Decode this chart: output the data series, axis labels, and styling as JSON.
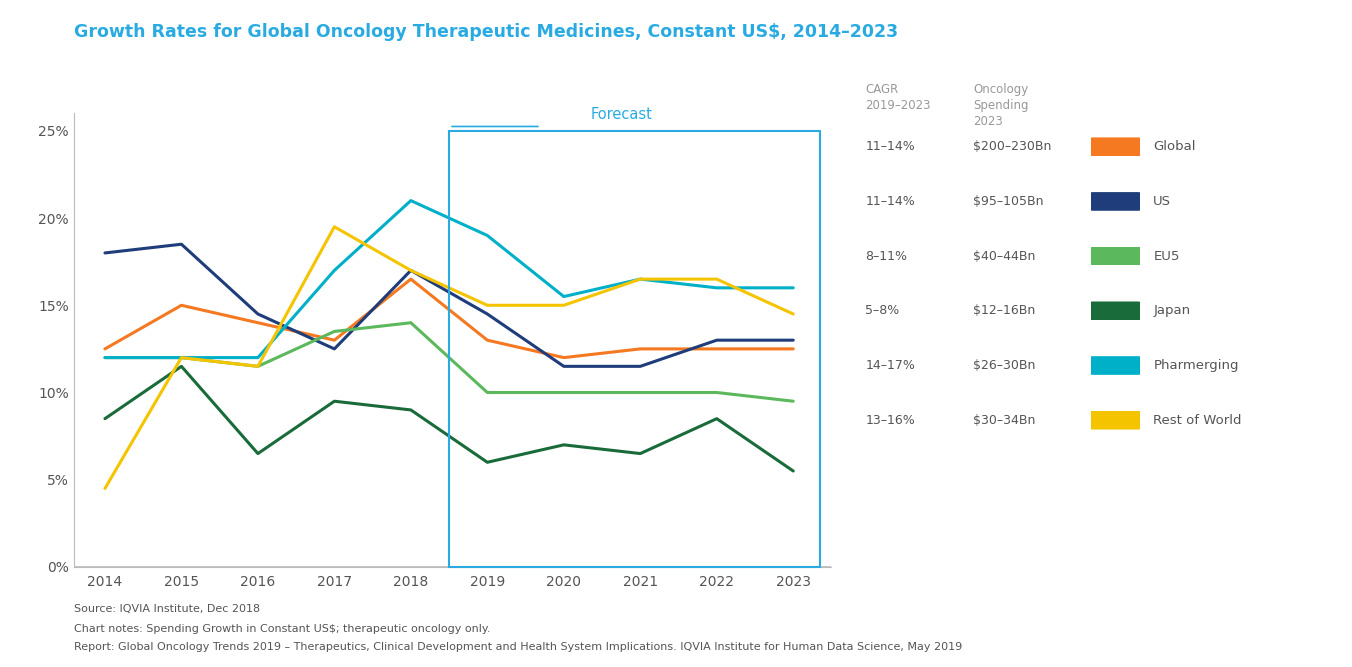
{
  "title": "Growth Rates for Global Oncology Therapeutic Medicines, Constant US$, 2014–2023",
  "title_color": "#29ABE2",
  "years_hist": [
    2014,
    2015,
    2016,
    2017,
    2018
  ],
  "years_fore": [
    2019,
    2020,
    2021,
    2022,
    2023
  ],
  "series": [
    {
      "name": "Global",
      "color": "#F47920",
      "hist": [
        12.5,
        15.0,
        14.0,
        13.0,
        16.5
      ],
      "fore": [
        13.0,
        12.0,
        12.5,
        12.5,
        12.5
      ]
    },
    {
      "name": "US",
      "color": "#1F3D7A",
      "hist": [
        18.0,
        18.5,
        14.5,
        12.5,
        17.0
      ],
      "fore": [
        14.5,
        11.5,
        11.5,
        13.0,
        13.0
      ]
    },
    {
      "name": "EU5",
      "color": "#5CB85C",
      "hist": [
        12.0,
        12.0,
        11.5,
        13.5,
        14.0
      ],
      "fore": [
        10.0,
        10.0,
        10.0,
        10.0,
        9.5
      ]
    },
    {
      "name": "Japan",
      "color": "#1A6B3A",
      "hist": [
        8.5,
        11.5,
        6.5,
        9.5,
        9.0
      ],
      "fore": [
        6.0,
        7.0,
        6.5,
        8.5,
        5.5
      ]
    },
    {
      "name": "Pharmerging",
      "color": "#00B0C8",
      "hist": [
        12.0,
        12.0,
        12.0,
        17.0,
        21.0
      ],
      "fore": [
        19.0,
        15.5,
        16.5,
        16.0,
        16.0
      ]
    },
    {
      "name": "Rest of World",
      "color": "#F5C400",
      "hist": [
        4.5,
        12.0,
        11.5,
        19.5,
        17.0
      ],
      "fore": [
        15.0,
        15.0,
        16.5,
        16.5,
        14.5
      ]
    }
  ],
  "legend_data": [
    {
      "label": "Global",
      "cagr": "11–14%",
      "spending": "$200–230Bn",
      "color": "#F47920"
    },
    {
      "label": "US",
      "cagr": "11–14%",
      "spending": "$95–105Bn",
      "color": "#1F3D7A"
    },
    {
      "label": "EU5",
      "cagr": "8–11%",
      "spending": "$40–44Bn",
      "color": "#5CB85C"
    },
    {
      "label": "Japan",
      "cagr": "5–8%",
      "spending": "$12–16Bn",
      "color": "#1A6B3A"
    },
    {
      "label": "Pharmerging",
      "cagr": "14–17%",
      "spending": "$26–30Bn",
      "color": "#00B0C8"
    },
    {
      "label": "Rest of World",
      "cagr": "13–16%",
      "spending": "$30–34Bn",
      "color": "#F5C400"
    }
  ],
  "forecast_box_color": "#29ABE2",
  "forecast_label": "Forecast",
  "ylim": [
    0,
    26
  ],
  "yticks": [
    0,
    5,
    10,
    15,
    20,
    25
  ],
  "ytick_labels": [
    "0%",
    "5%",
    "10%",
    "15%",
    "20%",
    "25%"
  ],
  "source_line1": "Source: IQVIA Institute, Dec 2018",
  "source_line2": "Chart notes: Spending Growth in Constant US$; therapeutic oncology only.",
  "source_line3": "Report: Global Oncology Trends 2019 – Therapeutics, Clinical Development and Health System Implications. IQVIA Institute for Human Data Science, May 2019",
  "line_width": 2.2,
  "axis_color": "#BBBBBB",
  "text_color": "#555555",
  "header_color": "#999999"
}
